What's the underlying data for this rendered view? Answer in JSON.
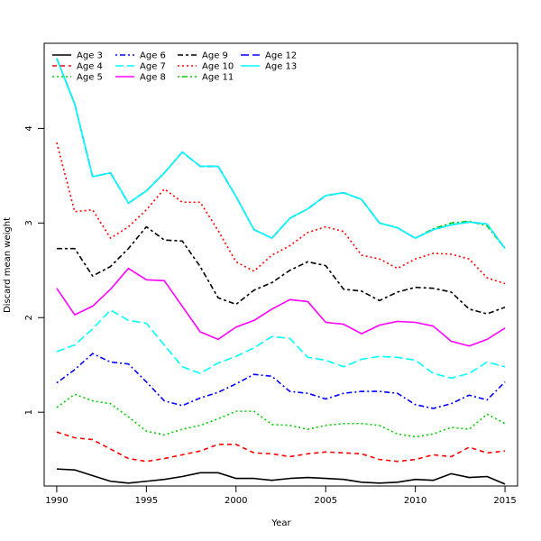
{
  "chart_data": {
    "type": "line",
    "title": "",
    "xlabel": "Year",
    "ylabel": "Discard mean weight",
    "xlim": [
      1989.3,
      2015.7
    ],
    "ylim": [
      0.22,
      4.9
    ],
    "x_ticks": [
      1990,
      1995,
      2000,
      2005,
      2010,
      2015
    ],
    "y_ticks": [
      1,
      2,
      3,
      4
    ],
    "legend_position": "top-left",
    "grid": false,
    "x": [
      1990,
      1991,
      1992,
      1993,
      1994,
      1995,
      1996,
      1997,
      1998,
      1999,
      2000,
      2001,
      2002,
      2003,
      2004,
      2005,
      2006,
      2007,
      2008,
      2009,
      2010,
      2011,
      2012,
      2013,
      2014,
      2015
    ],
    "series": [
      {
        "name": "Age 3",
        "color": "#000000",
        "dash": "solid",
        "values": [
          0.4,
          0.39,
          0.33,
          0.27,
          0.25,
          0.27,
          0.29,
          0.32,
          0.36,
          0.36,
          0.3,
          0.3,
          0.28,
          0.3,
          0.31,
          0.3,
          0.29,
          0.26,
          0.25,
          0.26,
          0.29,
          0.28,
          0.35,
          0.31,
          0.32,
          0.24
        ]
      },
      {
        "name": "Age 4",
        "color": "#ff0000",
        "dash": "dashed",
        "values": [
          0.79,
          0.73,
          0.71,
          0.61,
          0.51,
          0.48,
          0.51,
          0.55,
          0.59,
          0.66,
          0.66,
          0.57,
          0.56,
          0.53,
          0.56,
          0.58,
          0.57,
          0.56,
          0.5,
          0.48,
          0.5,
          0.55,
          0.53,
          0.63,
          0.57,
          0.59
        ]
      },
      {
        "name": "Age 5",
        "color": "#00cd00",
        "dash": "dotted",
        "values": [
          1.05,
          1.19,
          1.12,
          1.09,
          0.95,
          0.8,
          0.76,
          0.82,
          0.86,
          0.93,
          1.01,
          1.01,
          0.87,
          0.86,
          0.82,
          0.86,
          0.88,
          0.88,
          0.86,
          0.77,
          0.74,
          0.77,
          0.84,
          0.82,
          0.98,
          0.88
        ]
      },
      {
        "name": "Age 6",
        "color": "#0000ff",
        "dash": "dotdash",
        "values": [
          1.31,
          1.45,
          1.62,
          1.53,
          1.51,
          1.32,
          1.12,
          1.07,
          1.15,
          1.21,
          1.3,
          1.4,
          1.38,
          1.22,
          1.2,
          1.14,
          1.2,
          1.22,
          1.22,
          1.2,
          1.08,
          1.04,
          1.09,
          1.18,
          1.13,
          1.32
        ]
      },
      {
        "name": "Age 7",
        "color": "#00ffff",
        "dash": "longdash",
        "values": [
          1.64,
          1.71,
          1.88,
          2.08,
          1.97,
          1.94,
          1.71,
          1.48,
          1.41,
          1.52,
          1.59,
          1.68,
          1.8,
          1.78,
          1.58,
          1.55,
          1.48,
          1.56,
          1.59,
          1.58,
          1.55,
          1.41,
          1.36,
          1.41,
          1.53,
          1.48
        ]
      },
      {
        "name": "Age 8",
        "color": "#ff00ff",
        "dash": "solid",
        "values": [
          2.31,
          2.03,
          2.12,
          2.3,
          2.52,
          2.4,
          2.39,
          2.12,
          1.85,
          1.77,
          1.9,
          1.97,
          2.09,
          2.19,
          2.17,
          1.95,
          1.93,
          1.83,
          1.92,
          1.96,
          1.95,
          1.91,
          1.75,
          1.7,
          1.77,
          1.89
        ]
      },
      {
        "name": "Age 9",
        "color": "#000000",
        "dash": "twodash",
        "values": [
          2.73,
          2.73,
          2.44,
          2.54,
          2.73,
          2.96,
          2.82,
          2.81,
          2.54,
          2.21,
          2.14,
          2.29,
          2.37,
          2.5,
          2.59,
          2.55,
          2.3,
          2.28,
          2.18,
          2.27,
          2.32,
          2.31,
          2.27,
          2.09,
          2.04,
          2.11
        ]
      },
      {
        "name": "Age 10",
        "color": "#ff0000",
        "dash": "dotted",
        "values": [
          3.85,
          3.12,
          3.14,
          2.84,
          2.96,
          3.14,
          3.36,
          3.22,
          3.22,
          2.92,
          2.59,
          2.49,
          2.66,
          2.76,
          2.9,
          2.96,
          2.91,
          2.66,
          2.62,
          2.52,
          2.62,
          2.68,
          2.67,
          2.62,
          2.42,
          2.36
        ]
      },
      {
        "name": "Age 11",
        "color": "#00cd00",
        "dash": "dotdash",
        "values": [
          4.74,
          4.26,
          3.49,
          3.53,
          3.21,
          3.34,
          3.53,
          3.75,
          3.6,
          3.6,
          3.28,
          2.93,
          2.84,
          3.05,
          3.15,
          3.29,
          3.32,
          3.25,
          3.0,
          2.95,
          2.84,
          2.94,
          3.0,
          3.02,
          2.97,
          2.73
        ]
      },
      {
        "name": "Age 12",
        "color": "#0000ff",
        "dash": "longdash",
        "values": [
          4.74,
          4.26,
          3.49,
          3.53,
          3.21,
          3.34,
          3.53,
          3.75,
          3.6,
          3.6,
          3.28,
          2.93,
          2.84,
          3.05,
          3.15,
          3.29,
          3.32,
          3.25,
          3.0,
          2.95,
          2.84,
          2.93,
          2.98,
          3.01,
          2.99,
          2.73
        ]
      },
      {
        "name": "Age 13",
        "color": "#00ffff",
        "dash": "solid",
        "values": [
          4.74,
          4.26,
          3.49,
          3.53,
          3.21,
          3.34,
          3.53,
          3.75,
          3.6,
          3.6,
          3.28,
          2.93,
          2.84,
          3.05,
          3.15,
          3.29,
          3.32,
          3.25,
          3.0,
          2.95,
          2.84,
          2.93,
          2.98,
          3.01,
          2.99,
          2.73
        ]
      }
    ]
  }
}
